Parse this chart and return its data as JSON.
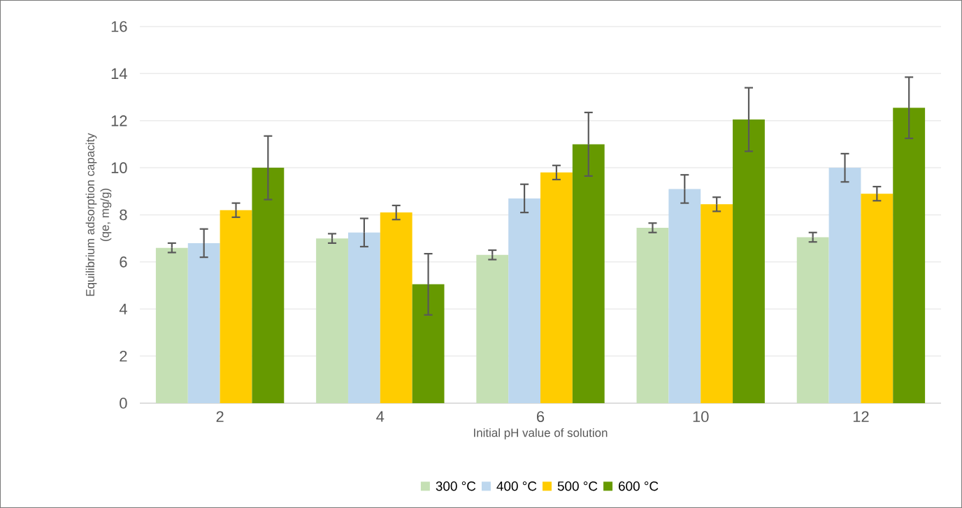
{
  "chart_data": {
    "type": "bar",
    "xlabel": "Initial pH value of solution",
    "ylabel": "Equilibrium adsorption capacity\n(qe, mg/g)",
    "categories": [
      "2",
      "4",
      "6",
      "10",
      "12"
    ],
    "series": [
      {
        "name": "300 °C",
        "color": "#c5e0b4",
        "values": [
          6.6,
          7.0,
          6.3,
          7.45,
          7.05
        ],
        "errors": [
          0.2,
          0.2,
          0.2,
          0.2,
          0.2
        ]
      },
      {
        "name": "400 °C",
        "color": "#bdd7ee",
        "values": [
          6.8,
          7.25,
          8.7,
          9.1,
          10.0
        ],
        "errors": [
          0.6,
          0.6,
          0.6,
          0.6,
          0.6
        ]
      },
      {
        "name": "500 °C",
        "color": "#ffcc00",
        "values": [
          8.2,
          8.1,
          9.8,
          8.45,
          8.9
        ],
        "errors": [
          0.3,
          0.3,
          0.3,
          0.3,
          0.3
        ]
      },
      {
        "name": "600 °C",
        "color": "#669900",
        "values": [
          10.0,
          5.05,
          11.0,
          12.05,
          12.55
        ],
        "errors": [
          1.35,
          1.3,
          1.35,
          1.35,
          1.3
        ]
      }
    ],
    "ylim": [
      0,
      16
    ],
    "yticks": [
      0,
      2,
      4,
      6,
      8,
      10,
      12,
      14,
      16
    ],
    "grid": "y",
    "legend": "bottom"
  }
}
